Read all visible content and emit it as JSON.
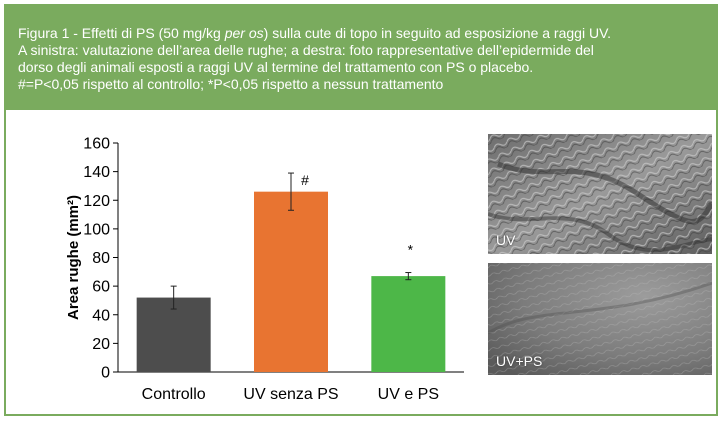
{
  "caption": {
    "prefix": "Figura 1 - Effetti di PS (50 mg/kg ",
    "italic": "per os",
    "suffix": ") sulla cute di topo in seguito ad esposizione a raggi UV.",
    "line2": "A sinistra: valutazione dell’area delle rughe; a destra: foto rappresentative dell’epidermide del",
    "line3": "dorso degli animali esposti a raggi UV al termine del trattamento con PS o placebo.",
    "line4": "#=P<0,05 rispetto al controllo; *P<0,05 rispetto a nessun trattamento"
  },
  "chart_data": {
    "type": "bar",
    "categories": [
      "Controllo",
      "UV senza PS",
      "UV e PS"
    ],
    "values": [
      52,
      126,
      67
    ],
    "errors": [
      8,
      13,
      2.5
    ],
    "annotations": [
      "",
      "#",
      "*"
    ],
    "colors": [
      "#4d4d4d",
      "#e87431",
      "#4db748"
    ],
    "ylabel": "Area rughe (mm²)",
    "ylim": [
      0,
      160
    ],
    "yticks": [
      0,
      20,
      40,
      60,
      80,
      100,
      120,
      140,
      160
    ],
    "grid": false,
    "legend": "none"
  },
  "photos": {
    "top_label": "UV",
    "bottom_label": "UV+PS"
  }
}
